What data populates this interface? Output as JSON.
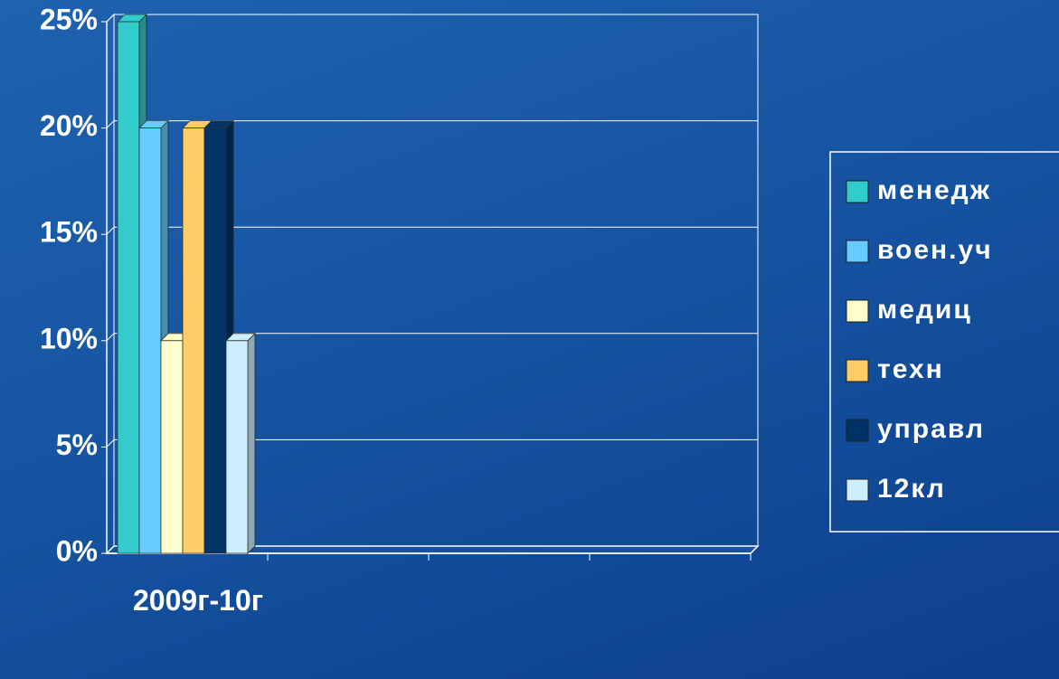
{
  "chart_data": {
    "type": "bar3d",
    "categories": [
      "2009г-10г",
      null,
      null,
      null
    ],
    "series": [
      {
        "name": "менедж",
        "color": "#33cccc",
        "values": [
          25,
          null,
          null,
          null
        ]
      },
      {
        "name": "воен.уч",
        "color": "#66ccff",
        "values": [
          20,
          null,
          null,
          null
        ]
      },
      {
        "name": "медиц",
        "color": "#ffffcc",
        "values": [
          10,
          null,
          null,
          null
        ]
      },
      {
        "name": "техн",
        "color": "#ffcc66",
        "values": [
          20,
          null,
          null,
          null
        ]
      },
      {
        "name": "управл",
        "color": "#003366",
        "values": [
          20,
          null,
          null,
          null
        ]
      },
      {
        "name": "12кл",
        "color": "#cceeff",
        "values": [
          10,
          null,
          null,
          null
        ]
      }
    ],
    "ylim": [
      0,
      25
    ],
    "yticks": [
      {
        "value": 0,
        "label": "0%"
      },
      {
        "value": 5,
        "label": "5%"
      },
      {
        "value": 10,
        "label": "10%"
      },
      {
        "value": 15,
        "label": "15%"
      },
      {
        "value": 20,
        "label": "20%"
      },
      {
        "value": 25,
        "label": "25%"
      }
    ],
    "grid": true,
    "legend": "right"
  }
}
